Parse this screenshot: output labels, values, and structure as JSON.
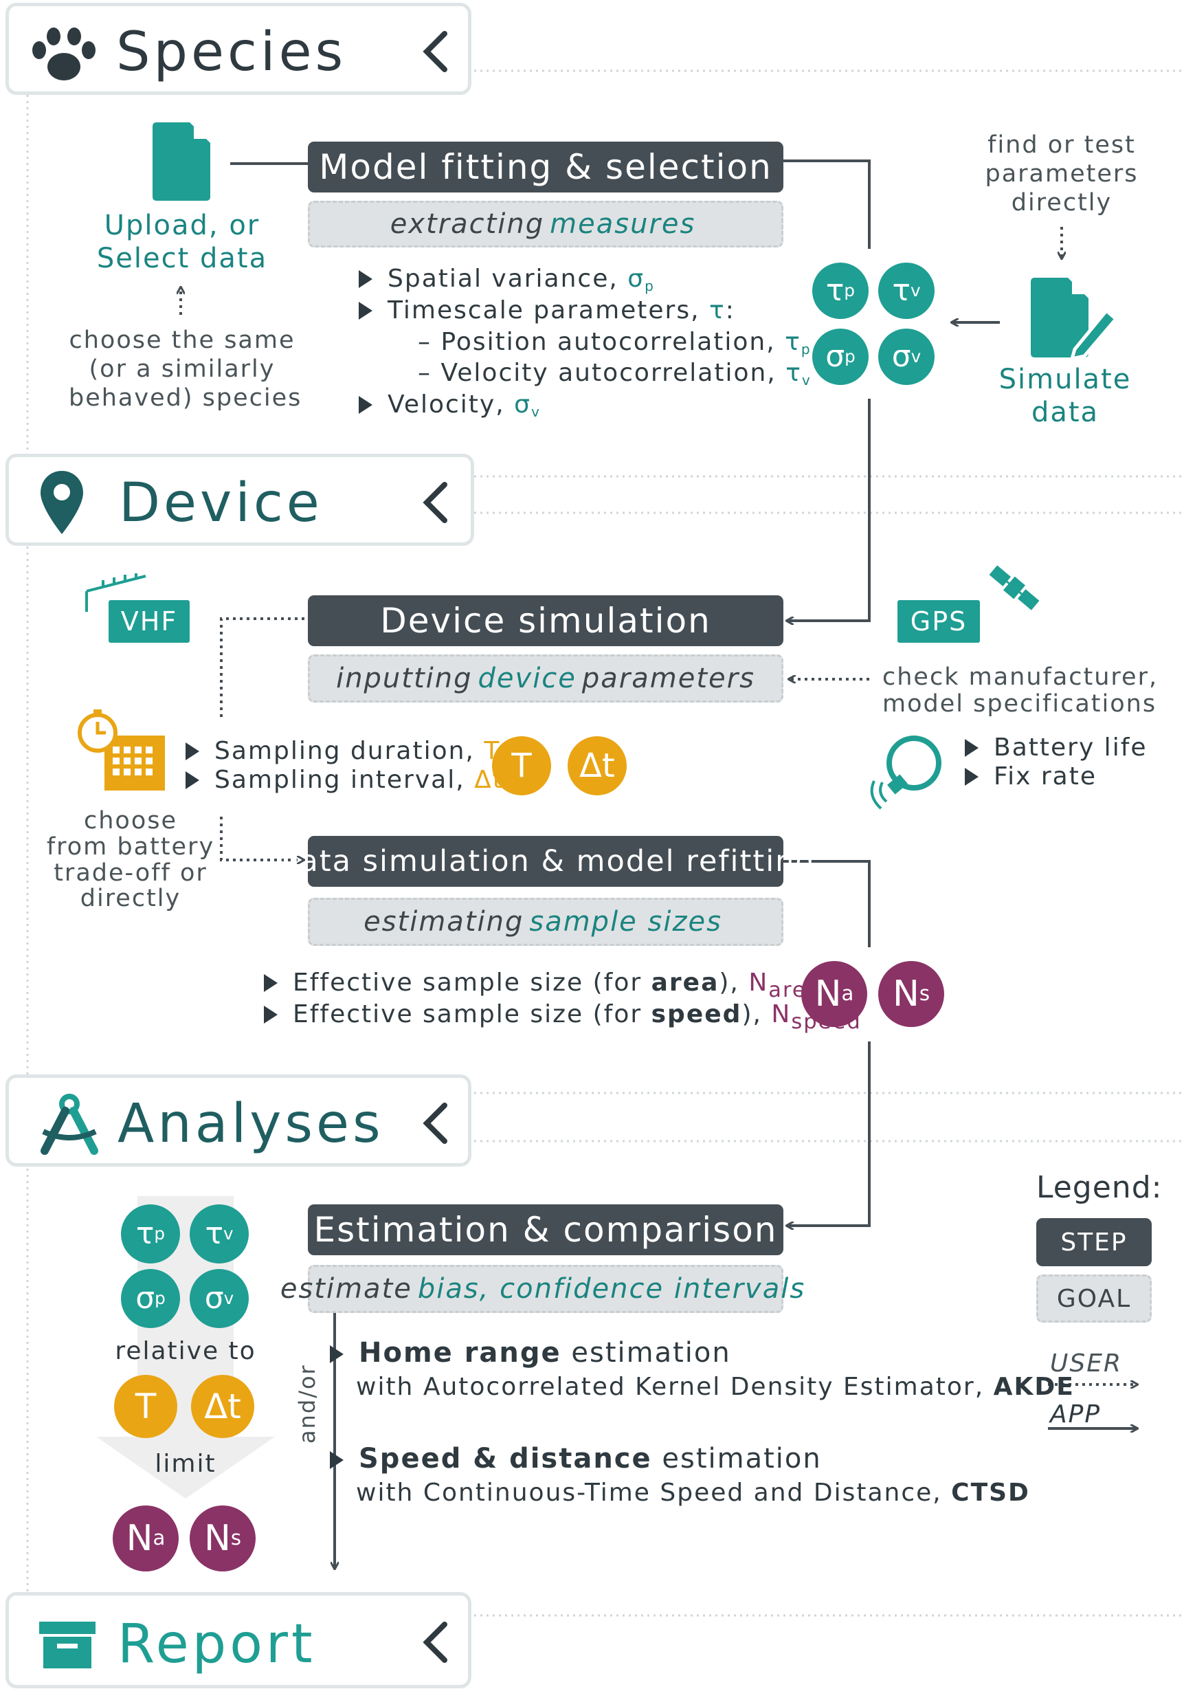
{
  "sections": {
    "species": "Species",
    "device": "Device",
    "analyses": "Analyses",
    "report": "Report"
  },
  "species": {
    "upload_label": [
      "Upload, or",
      "Select data"
    ],
    "choose_note": [
      "choose the same",
      "(or a similarly",
      "behaved) species"
    ],
    "find_note": [
      "find or test",
      "parameters",
      "directly"
    ],
    "simulate_label": [
      "Simulate",
      "data"
    ],
    "model_fitting_step": "Model fitting & selection",
    "model_fitting_goal": {
      "pre": "extracting",
      "hl": "measures",
      "post": ""
    },
    "bullets": {
      "spatial": "Spatial variance, ",
      "timescale": "Timescale parameters, ",
      "position": "– Position autocorrelation, ",
      "velocity_auto": "– Velocity autocorrelation, ",
      "velocity": "Velocity, "
    },
    "symbols": {
      "sigma_p": "σ",
      "p": "p",
      "tau": "τ",
      "tau_colon": ":",
      "tau_p": "τ",
      "tau_v": "τ",
      "v": "v",
      "sigma_v": "σ"
    },
    "circles": [
      {
        "main": "τ",
        "sub": "p"
      },
      {
        "main": "τ",
        "sub": "v"
      },
      {
        "main": "σ",
        "sub": "p"
      },
      {
        "main": "σ",
        "sub": "v"
      }
    ]
  },
  "device": {
    "vhf": "VHF",
    "gps": "GPS",
    "device_sim_step": "Device simulation",
    "device_sim_goal": {
      "pre": "inputting",
      "hl": "device",
      "post": "parameters"
    },
    "manufacturer_note": [
      "check manufacturer,",
      "model specifications"
    ],
    "sampling_duration": "Sampling duration, ",
    "sampling_interval": "Sampling interval, ",
    "T": "T",
    "dt": "Δt",
    "battery_life": "Battery life",
    "fix_rate": "Fix rate",
    "choose_note": [
      "choose",
      "from battery",
      "trade-off or",
      "directly"
    ],
    "data_sim_step": "Data simulation & model refitting",
    "data_sim_goal": {
      "pre": "estimating",
      "hl": "sample sizes",
      "post": ""
    },
    "ess_area": {
      "pre": "Effective sample size (for ",
      "bold": "area",
      "post": "), ",
      "sym": "N",
      "sub": "area"
    },
    "ess_speed": {
      "pre": "Effective sample size (for ",
      "bold": "speed",
      "post": "), ",
      "sym": "N",
      "sub": "speed"
    },
    "n_circles": [
      {
        "main": "N",
        "sub": "a"
      },
      {
        "main": "N",
        "sub": "s"
      }
    ]
  },
  "analyses": {
    "estimation_step": "Estimation & comparison",
    "estimation_goal": {
      "pre": "estimate",
      "hl": "bias, confidence intervals",
      "post": ""
    },
    "relative_to": "relative to",
    "limit": "limit",
    "and_or": "and/or",
    "home_range": {
      "bold": "Home range",
      "rest": " estimation"
    },
    "akde": {
      "pre": "with Autocorrelated Kernel Density Estimator, ",
      "bold": "AKDE"
    },
    "speed_distance": {
      "bold": "Speed & distance",
      "rest": " estimation"
    },
    "ctsd": {
      "pre": "with Continuous-Time Speed and Distance, ",
      "bold": "CTSD"
    },
    "legend": {
      "title": "Legend:",
      "step": "STEP",
      "goal": "GOAL",
      "user": "USER",
      "app": "APP"
    }
  },
  "colors": {
    "teal": "#1f9e93",
    "teal_text": "#1a8480",
    "gold": "#e9a514",
    "plum": "#8a3366",
    "step": "#454e54",
    "goal": "#dfe2e4"
  }
}
